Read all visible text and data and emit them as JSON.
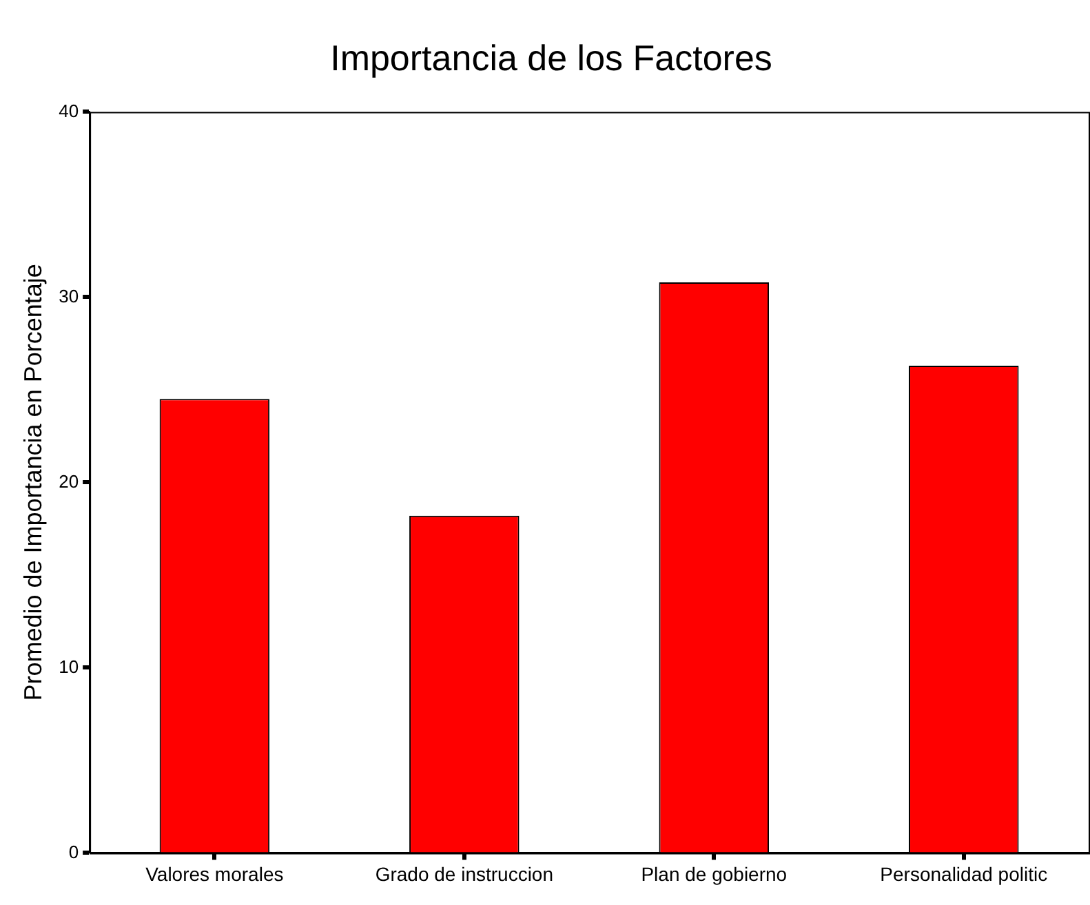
{
  "chart_data": {
    "type": "bar",
    "title": "Importancia de los Factores",
    "ylabel": "Promedio de Importancia en Porcentaje",
    "categories": [
      "Valores morales",
      "Grado de instruccion",
      "Plan de gobierno",
      "Personalidad politic"
    ],
    "values": [
      24.5,
      18.2,
      30.8,
      26.3
    ],
    "color": "#ff0000",
    "ylim": [
      0,
      40
    ],
    "yticks": [
      0,
      10,
      20,
      30,
      40
    ],
    "grid": false,
    "legend": false
  }
}
